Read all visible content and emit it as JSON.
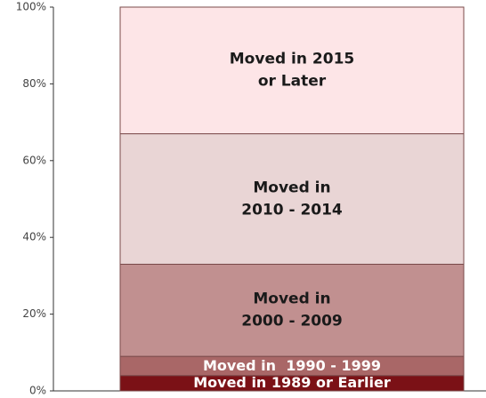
{
  "chart_data": {
    "type": "stacked_bar",
    "series": [
      {
        "name": "Moved in 1989 or Earlier",
        "color": "#7b1116",
        "text_color": "#ffffff",
        "values": [
          4
        ]
      },
      {
        "name": "Moved in  1990 - 1999",
        "color": "#a96767",
        "text_color": "#ffffff",
        "values": [
          5
        ]
      },
      {
        "name": "Moved in\n2000 - 2009",
        "color": "#c19090",
        "text_color": "#1a1a1a",
        "values": [
          24
        ]
      },
      {
        "name": "Moved in\n2010 - 2014",
        "color": "#e9d5d5",
        "text_color": "#1a1a1a",
        "values": [
          34
        ]
      },
      {
        "name": "Moved in 2015\nor Later",
        "color": "#fde5e7",
        "text_color": "#1a1a1a",
        "values": [
          33
        ]
      }
    ],
    "ylim": [
      0,
      100
    ],
    "yticks": [
      {
        "value": 0,
        "label": "0%"
      },
      {
        "value": 20,
        "label": "20%"
      },
      {
        "value": 40,
        "label": "40%"
      },
      {
        "value": 60,
        "label": "60%"
      },
      {
        "value": 80,
        "label": "80%"
      },
      {
        "value": 100,
        "label": "100%"
      }
    ]
  }
}
